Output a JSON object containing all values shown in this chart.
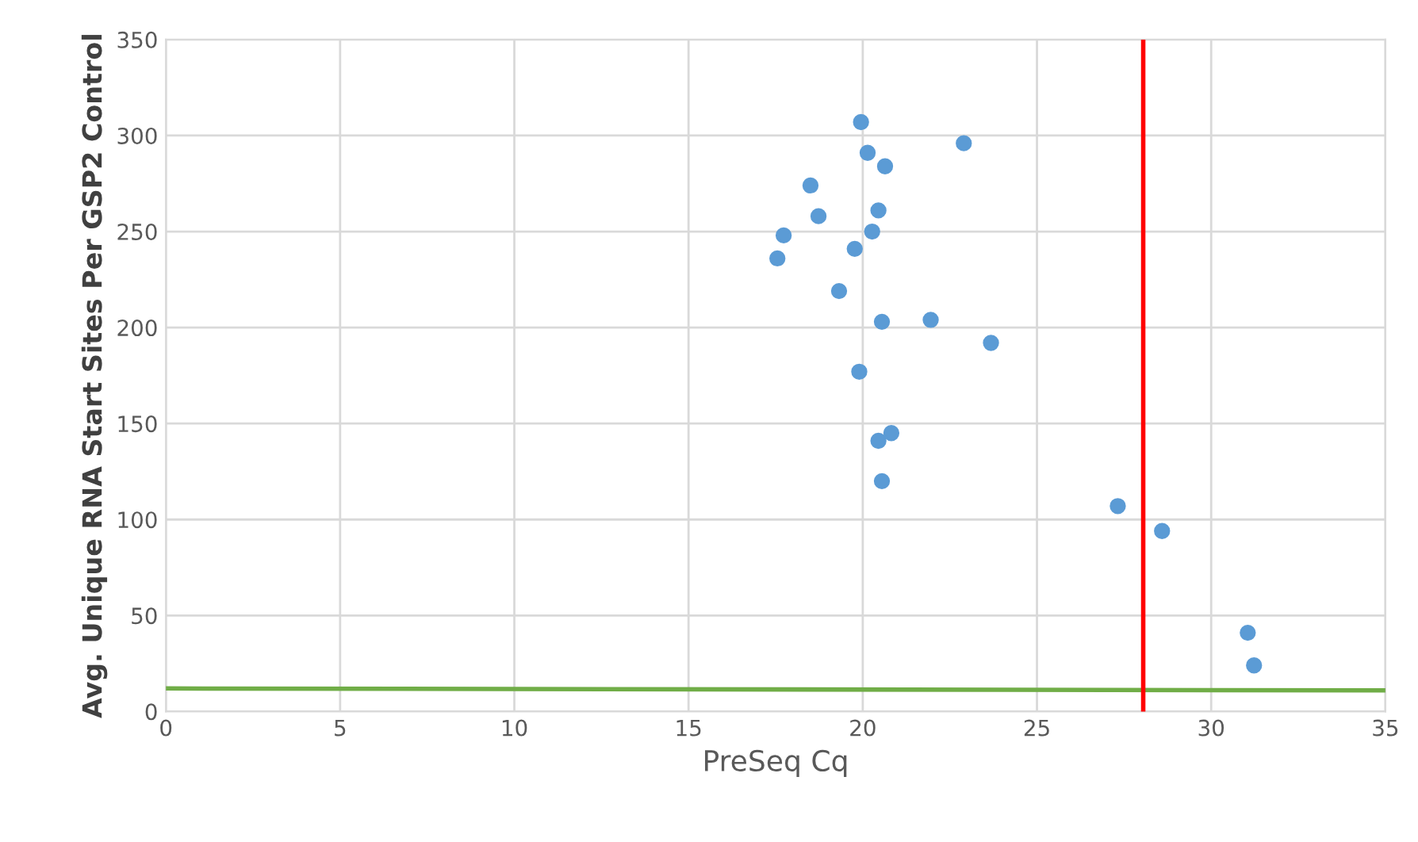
{
  "chart_data": {
    "type": "scatter",
    "xlabel": "PreSeq Cq",
    "ylabel": "Avg. Unique RNA Start Sites Per GSP2 Control",
    "series": [
      {
        "color": "#5b9bd5",
        "marker": "circle",
        "x": [
          19.95,
          20.14,
          20.64,
          22.9,
          18.5,
          18.73,
          20.45,
          20.27,
          17.73,
          19.77,
          17.55,
          19.32,
          20.55,
          21.95,
          23.68,
          19.9,
          20.45,
          20.82,
          20.55,
          27.32,
          28.59,
          31.05,
          31.23
        ],
        "values": [
          307,
          291,
          284,
          296,
          274,
          258,
          261,
          250,
          248,
          241,
          236,
          219,
          203,
          204,
          192,
          177,
          141,
          145,
          120,
          107,
          94,
          41,
          24
        ]
      },
      {
        "type": "line",
        "color": "#70ad47",
        "marker": "none",
        "x": [
          0,
          35
        ],
        "values": [
          12,
          11
        ]
      }
    ],
    "ref_lines": [
      {
        "axis": "x",
        "value": 28.05,
        "color": "#ff0000"
      }
    ],
    "xlim": [
      0,
      35
    ],
    "xticks": [
      0,
      5,
      10,
      15,
      20,
      25,
      30,
      35
    ],
    "ylim": [
      0,
      350
    ],
    "yticks": [
      0,
      50,
      100,
      150,
      200,
      250,
      300,
      350
    ],
    "grid": true
  }
}
